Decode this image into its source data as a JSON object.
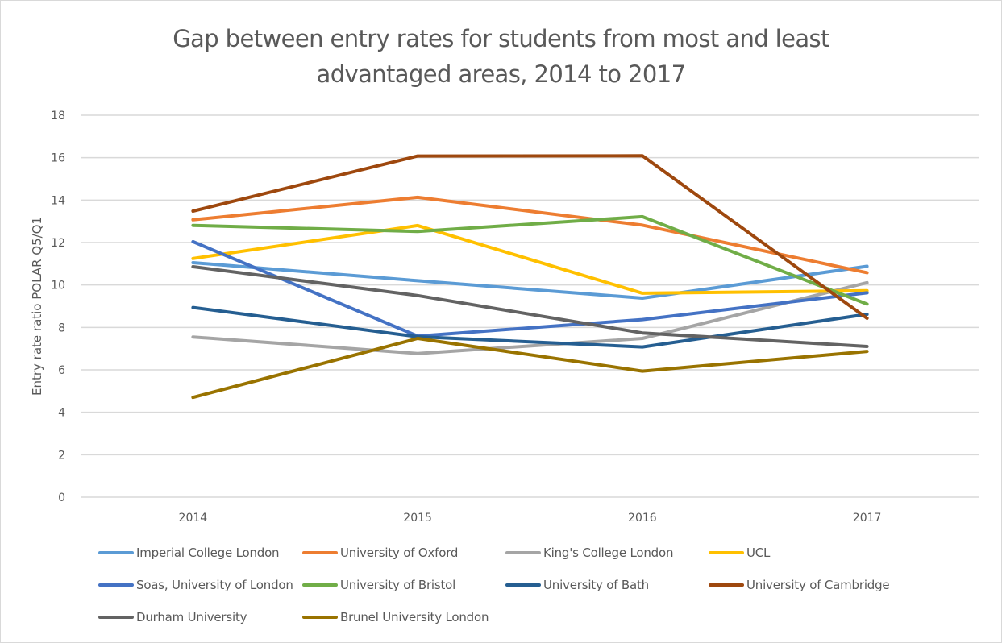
{
  "chart_data": {
    "type": "line",
    "title": "Gap between entry rates for students from most and least advantaged areas, 2014 to 2017",
    "title_lines": [
      "Gap between entry rates for students from most and least",
      "advantaged areas, 2014 to 2017"
    ],
    "xlabel": "",
    "ylabel": "Entry rate ratio POLAR Q5/Q1",
    "categories": [
      "2014",
      "2015",
      "2016",
      "2017"
    ],
    "ylim": [
      0,
      18
    ],
    "yticks": [
      0,
      2,
      4,
      6,
      8,
      10,
      12,
      14,
      16,
      18
    ],
    "grid": true,
    "legend_position": "bottom",
    "series": [
      {
        "name": "Imperial College London",
        "color": "#5b9bd5",
        "values": [
          11.05,
          10.2,
          9.38,
          10.88
        ]
      },
      {
        "name": "University of Oxford",
        "color": "#ed7d31",
        "values": [
          13.07,
          14.13,
          12.82,
          10.58
        ]
      },
      {
        "name": "King's College London",
        "color": "#a5a5a5",
        "values": [
          7.55,
          6.77,
          7.48,
          10.11
        ]
      },
      {
        "name": "UCL",
        "color": "#ffc000",
        "values": [
          11.25,
          12.8,
          9.61,
          9.73
        ]
      },
      {
        "name": "Soas, University of London",
        "color": "#4472c4",
        "values": [
          12.04,
          7.59,
          8.37,
          9.63
        ]
      },
      {
        "name": "University of Bristol",
        "color": "#70ad47",
        "values": [
          12.81,
          12.52,
          13.22,
          9.1
        ]
      },
      {
        "name": "University of Bath",
        "color": "#255e91",
        "values": [
          8.94,
          7.56,
          7.08,
          8.62
        ]
      },
      {
        "name": "University of Cambridge",
        "color": "#9e480e",
        "values": [
          13.48,
          16.08,
          16.09,
          8.43
        ]
      },
      {
        "name": "Durham University",
        "color": "#636363",
        "values": [
          10.86,
          9.5,
          7.74,
          7.1
        ]
      },
      {
        "name": "Brunel University London",
        "color": "#997300",
        "values": [
          4.7,
          7.48,
          5.94,
          6.87
        ]
      }
    ]
  }
}
